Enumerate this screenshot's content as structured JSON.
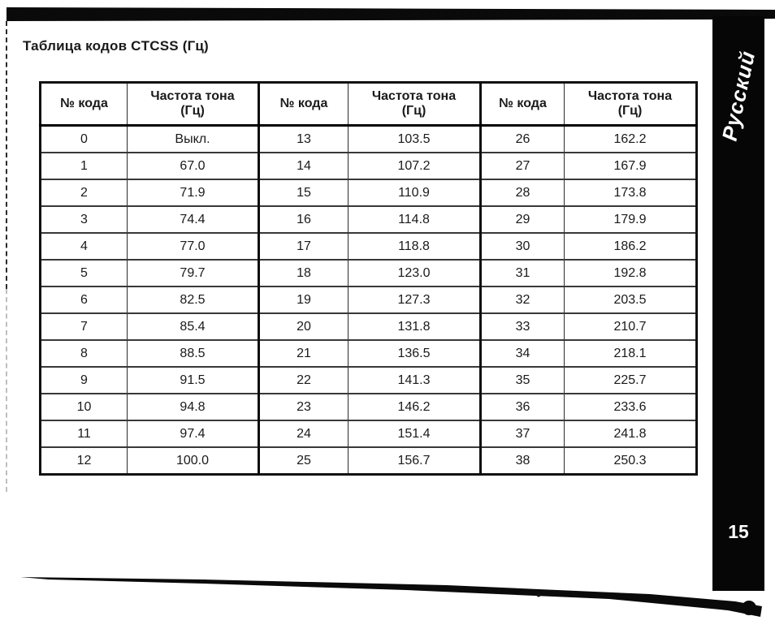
{
  "page": {
    "title": "Таблица кодов CTCSS (Гц)",
    "sidebar_label": "Русский",
    "page_number": "15",
    "colors": {
      "ink": "#1a1a1a",
      "sidebar_bg": "#060606",
      "sidebar_text": "#ffffff",
      "paper": "#ffffff"
    }
  },
  "table": {
    "headers": {
      "code_label": "№ кода",
      "freq_label": "Частота тона",
      "freq_unit": "(Гц)"
    },
    "rows": [
      [
        "0",
        "Выкл.",
        "13",
        "103.5",
        "26",
        "162.2"
      ],
      [
        "1",
        "67.0",
        "14",
        "107.2",
        "27",
        "167.9"
      ],
      [
        "2",
        "71.9",
        "15",
        "110.9",
        "28",
        "173.8"
      ],
      [
        "3",
        "74.4",
        "16",
        "114.8",
        "29",
        "179.9"
      ],
      [
        "4",
        "77.0",
        "17",
        "118.8",
        "30",
        "186.2"
      ],
      [
        "5",
        "79.7",
        "18",
        "123.0",
        "31",
        "192.8"
      ],
      [
        "6",
        "82.5",
        "19",
        "127.3",
        "32",
        "203.5"
      ],
      [
        "7",
        "85.4",
        "20",
        "131.8",
        "33",
        "210.7"
      ],
      [
        "8",
        "88.5",
        "21",
        "136.5",
        "34",
        "218.1"
      ],
      [
        "9",
        "91.5",
        "22",
        "141.3",
        "35",
        "225.7"
      ],
      [
        "10",
        "94.8",
        "23",
        "146.2",
        "36",
        "233.6"
      ],
      [
        "11",
        "97.4",
        "24",
        "151.4",
        "37",
        "241.8"
      ],
      [
        "12",
        "100.0",
        "25",
        "156.7",
        "38",
        "250.3"
      ]
    ]
  }
}
